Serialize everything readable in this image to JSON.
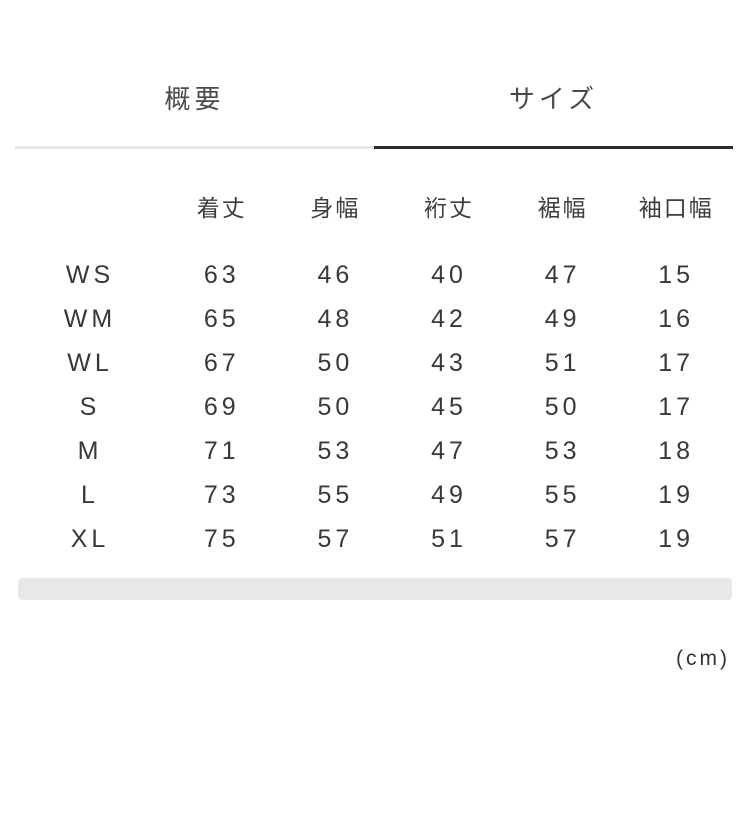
{
  "tabs": [
    {
      "label": "概要",
      "active": false
    },
    {
      "label": "サイズ",
      "active": true
    }
  ],
  "size_table": {
    "columns": [
      "着丈",
      "身幅",
      "裄丈",
      "裾幅",
      "袖口幅"
    ],
    "rows": [
      {
        "size": "WS",
        "values": [
          "63",
          "46",
          "40",
          "47",
          "15"
        ]
      },
      {
        "size": "WM",
        "values": [
          "65",
          "48",
          "42",
          "49",
          "16"
        ]
      },
      {
        "size": "WL",
        "values": [
          "67",
          "50",
          "43",
          "51",
          "17"
        ]
      },
      {
        "size": "S",
        "values": [
          "69",
          "50",
          "45",
          "50",
          "17"
        ]
      },
      {
        "size": "M",
        "values": [
          "71",
          "53",
          "47",
          "53",
          "18"
        ]
      },
      {
        "size": "L",
        "values": [
          "73",
          "55",
          "49",
          "55",
          "19"
        ]
      },
      {
        "size": "XL",
        "values": [
          "75",
          "57",
          "51",
          "57",
          "19"
        ]
      }
    ],
    "unit_note": "(cm)"
  }
}
